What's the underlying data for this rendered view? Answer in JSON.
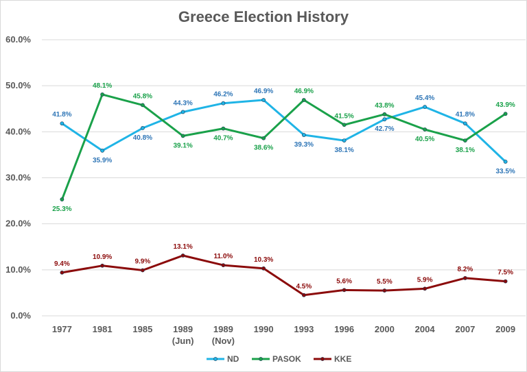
{
  "chart_data": {
    "type": "line",
    "title": "Greece Election History",
    "xlabel": "",
    "ylabel": "",
    "categories": [
      "1977",
      "1981",
      "1985",
      "1989\n(Jun)",
      "1989\n(Nov)",
      "1990",
      "1993",
      "1996",
      "2000",
      "2004",
      "2007",
      "2009"
    ],
    "ylim": [
      0,
      60
    ],
    "yticks": [
      "0.0%",
      "10.0%",
      "20.0%",
      "30.0%",
      "40.0%",
      "50.0%",
      "60.0%"
    ],
    "grid": true,
    "legend_position": "bottom",
    "series": [
      {
        "name": "ND",
        "color": "#1fb4e6",
        "label_color": "#2e75b6",
        "values": [
          41.8,
          35.9,
          40.8,
          44.3,
          46.2,
          46.9,
          39.3,
          38.1,
          42.7,
          45.4,
          41.8,
          33.5
        ],
        "labels": [
          "41.8%",
          "35.9%",
          "40.8%",
          "44.3%",
          "46.2%",
          "46.9%",
          "39.3%",
          "38.1%",
          "42.7%",
          "45.4%",
          "41.8%",
          "33.5%"
        ]
      },
      {
        "name": "PASOK",
        "color": "#1aa14a",
        "label_color": "#1aa14a",
        "values": [
          25.3,
          48.1,
          45.8,
          39.1,
          40.7,
          38.6,
          46.9,
          41.5,
          43.8,
          40.5,
          38.1,
          43.9
        ],
        "labels": [
          "25.3%",
          "48.1%",
          "45.8%",
          "39.1%",
          "40.7%",
          "38.6%",
          "46.9%",
          "41.5%",
          "43.8%",
          "40.5%",
          "38.1%",
          "43.9%"
        ]
      },
      {
        "name": "KKE",
        "color": "#8b0a0a",
        "label_color": "#8b0a0a",
        "values": [
          9.4,
          10.9,
          9.9,
          13.1,
          11.0,
          10.3,
          4.5,
          5.6,
          5.5,
          5.9,
          8.2,
          7.5
        ],
        "labels": [
          "9.4%",
          "10.9%",
          "9.9%",
          "13.1%",
          "11.0%",
          "10.3%",
          "4.5%",
          "5.6%",
          "5.5%",
          "5.9%",
          "8.2%",
          "7.5%"
        ]
      }
    ]
  }
}
